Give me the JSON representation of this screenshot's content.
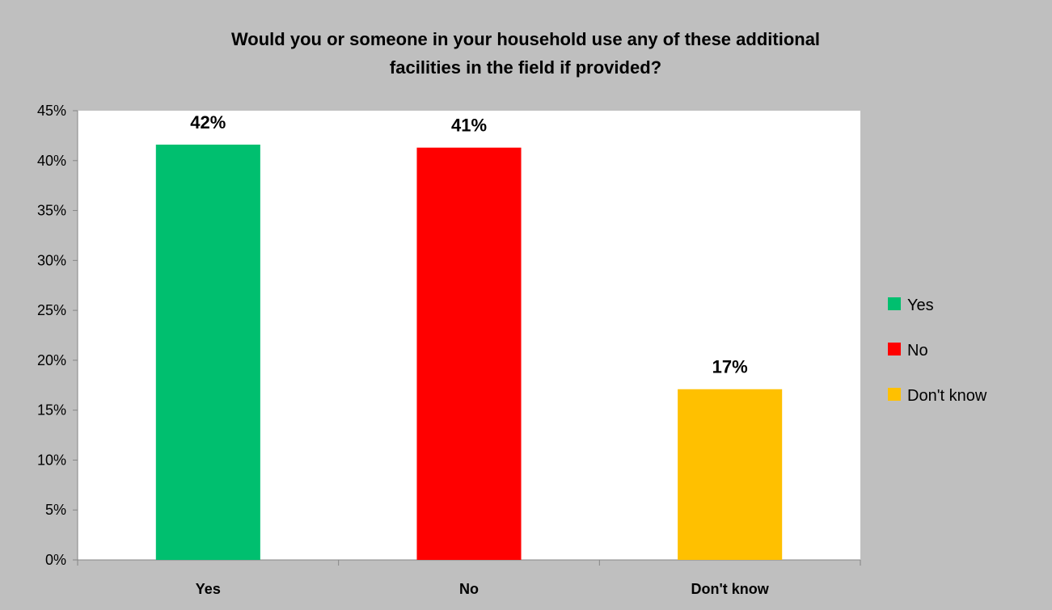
{
  "chart_data": {
    "type": "bar",
    "title_line1": "Would you or someone in your household use any of these additional",
    "title_line2": "facilities in the field if provided?",
    "xlabel": "",
    "ylabel": "",
    "categories": [
      "Yes",
      "No",
      "Don't know"
    ],
    "values": [
      41.6,
      41.3,
      17.1
    ],
    "data_labels": [
      "42%",
      "41%",
      "17%"
    ],
    "colors": [
      "#00bf6f",
      "#ff0000",
      "#ffc000"
    ],
    "ylim": [
      0,
      45
    ],
    "yticks": [
      0,
      5,
      10,
      15,
      20,
      25,
      30,
      35,
      40,
      45
    ],
    "ytick_labels": [
      "0%",
      "5%",
      "10%",
      "15%",
      "20%",
      "25%",
      "30%",
      "35%",
      "40%",
      "45%"
    ],
    "grid": false,
    "legend": {
      "position": "right",
      "entries": [
        "Yes",
        "No",
        "Don't know"
      ]
    },
    "background": "#bfbfbf",
    "plot_background": "#ffffff"
  }
}
